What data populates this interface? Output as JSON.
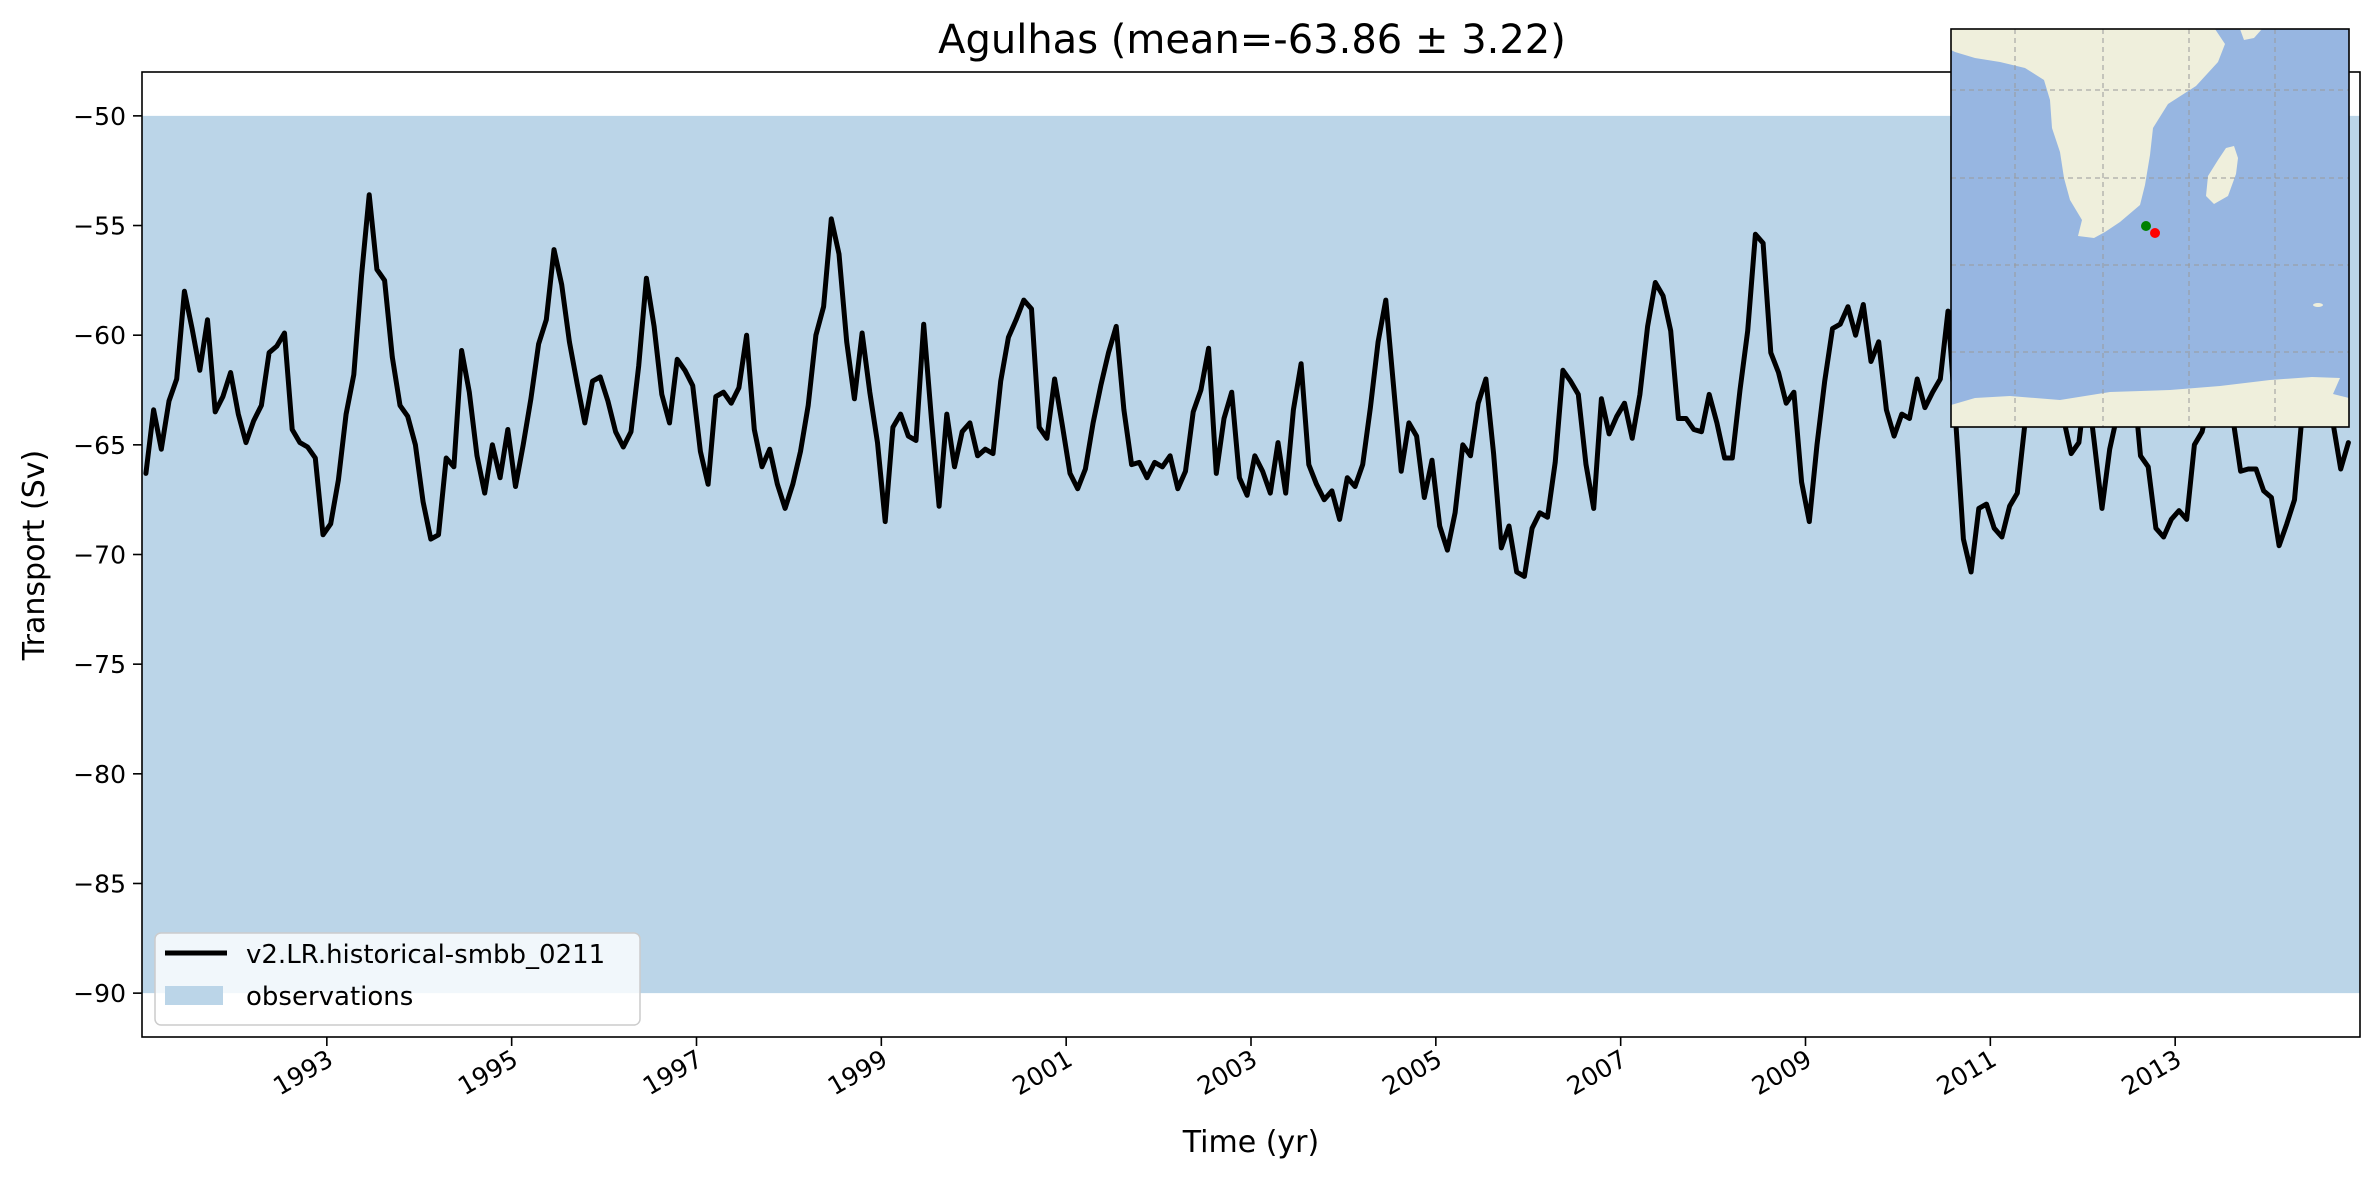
{
  "chart_data": {
    "type": "line",
    "title": "Agulhas (mean=-63.86 ± 3.22)",
    "xlabel": "Time (yr)",
    "ylabel": "Transport (Sv)",
    "xlim": [
      1991.0,
      2015.0
    ],
    "ylim": [
      -92,
      -48
    ],
    "x_ticks": [
      1993,
      1995,
      1997,
      1999,
      2001,
      2003,
      2005,
      2007,
      2009,
      2011,
      2013
    ],
    "x_tick_labels": [
      "1993",
      "1995",
      "1997",
      "1999",
      "2001",
      "2003",
      "2005",
      "2007",
      "2009",
      "2011",
      "2013"
    ],
    "y_ticks": [
      -50,
      -55,
      -60,
      -65,
      -70,
      -75,
      -80,
      -85,
      -90
    ],
    "y_tick_labels": [
      "−50",
      "−55",
      "−60",
      "−65",
      "−70",
      "−75",
      "−80",
      "−85",
      "−90"
    ],
    "observation_band": {
      "name": "observations",
      "y_min": -90,
      "y_max": -50,
      "color": "#bbd5e8"
    },
    "series": [
      {
        "name": "v2.LR.historical-smbb_0211",
        "color": "#000000",
        "x_start": 1991.0417,
        "x_step": 0.083333,
        "values": [
          -66.3,
          -63.4,
          -65.2,
          -63.0,
          -62.0,
          -58.0,
          -59.7,
          -61.6,
          -59.3,
          -63.5,
          -62.8,
          -61.7,
          -63.6,
          -64.9,
          -63.9,
          -63.2,
          -60.8,
          -60.5,
          -59.9,
          -64.3,
          -64.9,
          -65.1,
          -65.6,
          -69.1,
          -68.6,
          -66.6,
          -63.6,
          -61.8,
          -57.3,
          -53.6,
          -57.0,
          -57.5,
          -61.0,
          -63.2,
          -63.7,
          -65.0,
          -67.6,
          -69.3,
          -69.1,
          -65.6,
          -66.0,
          -60.7,
          -62.6,
          -65.5,
          -67.2,
          -65.0,
          -66.5,
          -64.3,
          -66.9,
          -65.0,
          -62.9,
          -60.4,
          -59.3,
          -56.1,
          -57.7,
          -60.3,
          -62.2,
          -64.0,
          -62.1,
          -61.9,
          -63.0,
          -64.4,
          -65.1,
          -64.4,
          -61.4,
          -57.4,
          -59.6,
          -62.7,
          -64.0,
          -61.1,
          -61.6,
          -62.3,
          -65.3,
          -66.8,
          -62.8,
          -62.6,
          -63.1,
          -62.4,
          -60.0,
          -64.3,
          -66.0,
          -65.2,
          -66.8,
          -67.9,
          -66.8,
          -65.3,
          -63.2,
          -60.0,
          -58.7,
          -54.7,
          -56.3,
          -60.3,
          -62.9,
          -59.9,
          -62.6,
          -64.9,
          -68.5,
          -64.2,
          -63.6,
          -64.6,
          -64.8,
          -59.5,
          -63.8,
          -67.8,
          -63.6,
          -66.0,
          -64.4,
          -64.0,
          -65.5,
          -65.2,
          -65.4,
          -62.1,
          -60.1,
          -59.3,
          -58.4,
          -58.8,
          -64.2,
          -64.7,
          -62.0,
          -64.1,
          -66.3,
          -67.0,
          -66.1,
          -64.0,
          -62.3,
          -60.8,
          -59.6,
          -63.4,
          -65.9,
          -65.8,
          -66.5,
          -65.8,
          -66.0,
          -65.5,
          -67.0,
          -66.2,
          -63.5,
          -62.5,
          -60.6,
          -66.3,
          -63.8,
          -62.6,
          -66.5,
          -67.3,
          -65.5,
          -66.2,
          -67.2,
          -64.9,
          -67.2,
          -63.4,
          -61.3,
          -65.9,
          -66.8,
          -67.5,
          -67.1,
          -68.4,
          -66.5,
          -66.9,
          -65.9,
          -63.3,
          -60.3,
          -58.4,
          -62.3,
          -66.2,
          -64.0,
          -64.6,
          -67.4,
          -65.7,
          -68.7,
          -69.8,
          -68.1,
          -65.0,
          -65.5,
          -63.1,
          -62.0,
          -65.4,
          -69.7,
          -68.7,
          -70.8,
          -71.0,
          -68.8,
          -68.1,
          -68.3,
          -65.8,
          -61.6,
          -62.1,
          -62.7,
          -65.9,
          -67.9,
          -62.9,
          -64.5,
          -63.7,
          -63.1,
          -64.7,
          -62.7,
          -59.6,
          -57.6,
          -58.2,
          -59.8,
          -63.8,
          -63.8,
          -64.3,
          -64.4,
          -62.7,
          -64.0,
          -65.6,
          -65.6,
          -62.5,
          -59.8,
          -55.4,
          -55.8,
          -60.8,
          -61.7,
          -63.1,
          -62.6,
          -66.7,
          -68.5,
          -65.0,
          -62.1,
          -59.7,
          -59.5,
          -58.7,
          -60.0,
          -58.6,
          -61.2,
          -60.3,
          -63.4,
          -64.6,
          -63.6,
          -63.8,
          -62.0,
          -63.3,
          -62.6,
          -62.0,
          -58.9,
          -63.9,
          -69.3,
          -70.8,
          -67.9,
          -67.7,
          -68.8,
          -69.2,
          -67.8,
          -67.2,
          -64.0,
          -60.5,
          -57.8,
          -59.2,
          -62.4,
          -63.8,
          -65.4,
          -64.9,
          -62.0,
          -64.9,
          -67.9,
          -65.2,
          -63.6,
          -62.6,
          -61.7,
          -65.5,
          -66.0,
          -68.8,
          -69.2,
          -68.4,
          -68.0,
          -68.4,
          -65.0,
          -64.4,
          -62.8,
          -61.9,
          -62.6,
          -63.8,
          -66.2,
          -66.1,
          -66.1,
          -67.1,
          -67.4,
          -69.6,
          -68.6,
          -67.5,
          -63.6,
          -60.9,
          -59.8,
          -61.6,
          -64.0,
          -66.1,
          -64.9
        ]
      }
    ],
    "legend": {
      "placement": "lower-left",
      "entries": [
        {
          "label": "v2.LR.historical-smbb_0211",
          "kind": "line"
        },
        {
          "label": "observations",
          "kind": "patch"
        }
      ]
    },
    "inset_map": {
      "placement": "upper-right",
      "ocean_color": "#97b6e1",
      "land_color": "#efefdc",
      "markers": [
        {
          "color": "#008000"
        },
        {
          "color": "#ff0000"
        }
      ]
    }
  }
}
